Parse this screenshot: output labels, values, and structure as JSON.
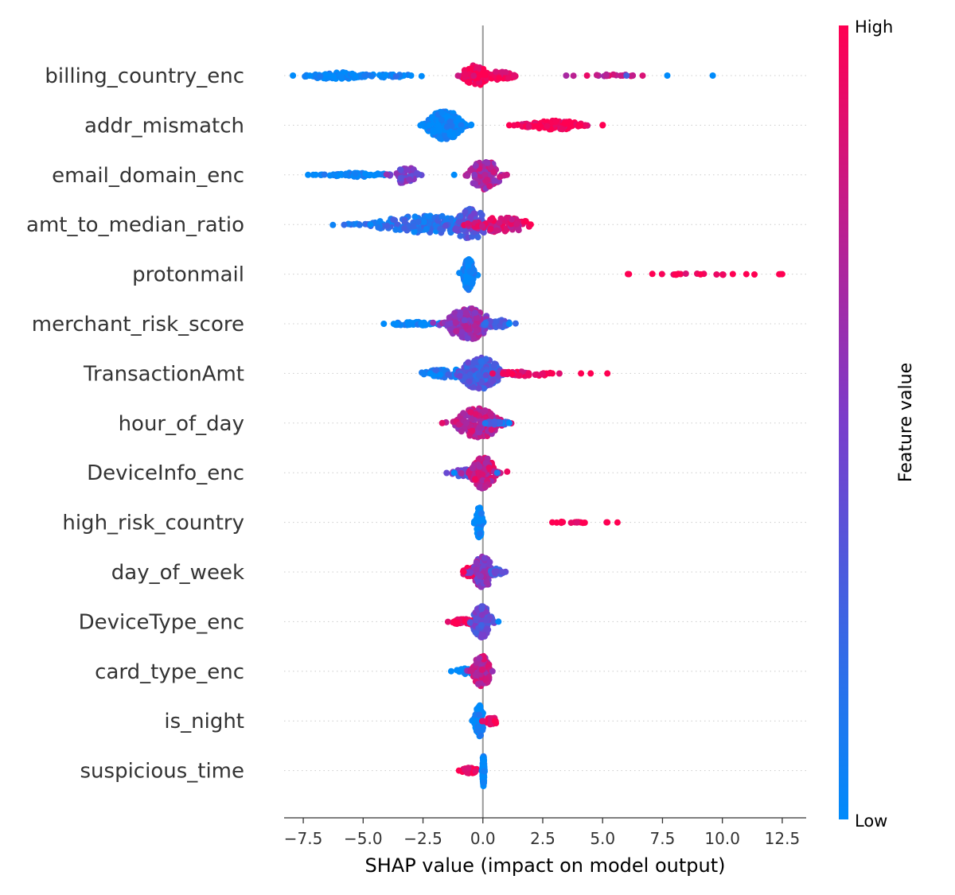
{
  "chart_data": {
    "type": "scatter",
    "subtype": "shap-beeswarm",
    "xlabel": "SHAP value (impact on model output)",
    "xlim": [
      -8.3,
      13.5
    ],
    "xticks": [
      -7.5,
      -5.0,
      -2.5,
      0.0,
      2.5,
      5.0,
      7.5,
      10.0,
      12.5
    ],
    "xtick_labels": [
      "−7.5",
      "−5.0",
      "−2.5",
      "0.0",
      "2.5",
      "5.0",
      "7.5",
      "10.0",
      "12.5"
    ],
    "colorbar": {
      "label": "Feature value",
      "high_label": "High",
      "low_label": "Low",
      "low_color": "#008bfb",
      "mid_color": "#7a3dcb",
      "high_color": "#ff0052"
    },
    "features": [
      {
        "name": "billing_country_enc",
        "clusters": [
          {
            "center": -6.0,
            "spread": 0.75,
            "count": 90,
            "width": 0.1,
            "value": 0.0
          },
          {
            "center": -4.0,
            "spread": 0.8,
            "count": 25,
            "width": 0.05,
            "value": 0.05
          },
          {
            "center": -0.5,
            "spread": 0.25,
            "count": 25,
            "width": 0.1,
            "value": 0.6
          },
          {
            "center": -0.3,
            "spread": 0.3,
            "count": 55,
            "width": 0.3,
            "value": 0.95
          },
          {
            "center": 0.5,
            "spread": 0.5,
            "count": 50,
            "width": 0.12,
            "value": 0.97
          },
          {
            "center": 5.0,
            "spread": 0.7,
            "count": 18,
            "width": 0.04,
            "value": 0.8
          }
        ],
        "points": [
          {
            "x": -3.0,
            "value": 0.0
          },
          {
            "x": 7.7,
            "value": 0.0
          },
          {
            "x": 9.6,
            "value": 0.0
          },
          {
            "x": 6.0,
            "value": 0.3
          }
        ]
      },
      {
        "name": "addr_mismatch",
        "clusters": [
          {
            "center": -1.6,
            "spread": 0.4,
            "count": 230,
            "width": 0.42,
            "value": 0.0
          },
          {
            "center": 2.9,
            "spread": 0.7,
            "count": 110,
            "width": 0.13,
            "value": 0.97
          }
        ],
        "points": [
          {
            "x": 1.1,
            "value": 1.0
          },
          {
            "x": 4.0,
            "value": 1.0
          },
          {
            "x": -0.5,
            "value": 0.0
          }
        ]
      },
      {
        "name": "email_domain_enc",
        "clusters": [
          {
            "center": -5.2,
            "spread": 0.75,
            "count": 60,
            "width": 0.06,
            "value": 0.0
          },
          {
            "center": -3.3,
            "spread": 0.3,
            "count": 45,
            "width": 0.25,
            "value": 0.5
          },
          {
            "center": 0.1,
            "spread": 0.35,
            "count": 120,
            "width": 0.42,
            "value": 0.7
          }
        ],
        "points": [
          {
            "x": -7.3,
            "value": 0.0
          },
          {
            "x": -1.2,
            "value": 0.0
          },
          {
            "x": 1.0,
            "value": 0.8
          }
        ]
      },
      {
        "name": "amt_to_median_ratio",
        "clusters": [
          {
            "center": -2.2,
            "spread": 1.3,
            "count": 200,
            "width": 0.25,
            "value": 0.15
          },
          {
            "center": -0.5,
            "spread": 0.4,
            "count": 80,
            "width": 0.45,
            "value": 0.35
          },
          {
            "center": 0.8,
            "spread": 0.7,
            "count": 90,
            "width": 0.22,
            "value": 0.85
          }
        ],
        "points": [
          {
            "x": -4.7,
            "value": 0.0
          },
          {
            "x": 2.0,
            "value": 1.0
          }
        ]
      },
      {
        "name": "protonmail",
        "clusters": [
          {
            "center": -0.6,
            "spread": 0.12,
            "count": 140,
            "width": 0.45,
            "value": 0.0
          },
          {
            "center": 9.0,
            "spread": 1.5,
            "count": 22,
            "width": 0.02,
            "value": 1.0
          }
        ],
        "points": [
          {
            "x": 6.1,
            "value": 1.0
          },
          {
            "x": 11.0,
            "value": 1.0
          },
          {
            "x": 12.5,
            "value": 1.0
          }
        ]
      },
      {
        "name": "merchant_risk_score",
        "clusters": [
          {
            "center": -2.8,
            "spread": 0.6,
            "count": 50,
            "width": 0.05,
            "value": 0.0
          },
          {
            "center": -0.6,
            "spread": 0.5,
            "count": 200,
            "width": 0.45,
            "value": 0.6
          },
          {
            "center": 0.6,
            "spread": 0.3,
            "count": 40,
            "width": 0.12,
            "value": 0.3
          }
        ],
        "points": [
          {
            "x": -3.6,
            "value": 0.0
          },
          {
            "x": 1.1,
            "value": 0.0
          }
        ]
      },
      {
        "name": "TransactionAmt",
        "clusters": [
          {
            "center": -1.5,
            "spread": 0.6,
            "count": 60,
            "width": 0.12,
            "value": 0.1
          },
          {
            "center": -0.1,
            "spread": 0.45,
            "count": 230,
            "width": 0.45,
            "value": 0.3
          },
          {
            "center": 1.8,
            "spread": 0.6,
            "count": 40,
            "width": 0.08,
            "value": 0.9
          }
        ],
        "points": [
          {
            "x": -2.2,
            "value": 0.0
          },
          {
            "x": 2.9,
            "value": 1.0
          },
          {
            "x": 4.1,
            "value": 1.0
          },
          {
            "x": 4.5,
            "value": 1.0
          },
          {
            "x": 5.2,
            "value": 1.0
          }
        ]
      },
      {
        "name": "hour_of_day",
        "clusters": [
          {
            "center": -0.2,
            "spread": 0.5,
            "count": 180,
            "width": 0.42,
            "value": 0.75
          },
          {
            "center": 0.6,
            "spread": 0.3,
            "count": 20,
            "width": 0.05,
            "value": 0.2
          }
        ],
        "points": [
          {
            "x": -1.7,
            "value": 0.9
          },
          {
            "x": 1.1,
            "value": 0.0
          }
        ]
      },
      {
        "name": "DeviceInfo_enc",
        "clusters": [
          {
            "center": -0.7,
            "spread": 0.35,
            "count": 40,
            "width": 0.12,
            "value": 0.4
          },
          {
            "center": 0.0,
            "spread": 0.28,
            "count": 150,
            "width": 0.45,
            "value": 0.8
          }
        ],
        "points": [
          {
            "x": -1.2,
            "value": 0.0
          },
          {
            "x": 0.6,
            "value": 0.1
          }
        ]
      },
      {
        "name": "high_risk_country",
        "clusters": [
          {
            "center": -0.15,
            "spread": 0.07,
            "count": 100,
            "width": 0.45,
            "value": 0.0
          },
          {
            "center": 3.8,
            "spread": 0.6,
            "count": 14,
            "width": 0.02,
            "value": 1.0
          }
        ],
        "points": [
          {
            "x": 2.9,
            "value": 1.0
          },
          {
            "x": 5.2,
            "value": 1.0
          }
        ]
      },
      {
        "name": "day_of_week",
        "clusters": [
          {
            "center": -0.4,
            "spread": 0.3,
            "count": 50,
            "width": 0.15,
            "value": 0.95
          },
          {
            "center": 0.0,
            "spread": 0.25,
            "count": 120,
            "width": 0.45,
            "value": 0.55
          },
          {
            "center": 0.5,
            "spread": 0.2,
            "count": 30,
            "width": 0.1,
            "value": 0.35
          }
        ],
        "points": [
          {
            "x": -0.8,
            "value": 1.0
          },
          {
            "x": 0.8,
            "value": 0.4
          }
        ]
      },
      {
        "name": "DeviceType_enc",
        "clusters": [
          {
            "center": -0.8,
            "spread": 0.3,
            "count": 40,
            "width": 0.08,
            "value": 0.97
          },
          {
            "center": -0.05,
            "spread": 0.22,
            "count": 140,
            "width": 0.45,
            "value": 0.4
          }
        ],
        "points": [
          {
            "x": -1.2,
            "value": 1.0
          },
          {
            "x": 0.65,
            "value": 0.0
          }
        ]
      },
      {
        "name": "card_type_enc",
        "clusters": [
          {
            "center": -0.7,
            "spread": 0.25,
            "count": 30,
            "width": 0.08,
            "value": 0.0
          },
          {
            "center": -0.05,
            "spread": 0.2,
            "count": 130,
            "width": 0.45,
            "value": 0.75
          }
        ],
        "points": [
          {
            "x": -1.0,
            "value": 0.0
          },
          {
            "x": 0.4,
            "value": 0.6
          }
        ]
      },
      {
        "name": "is_night",
        "clusters": [
          {
            "center": -0.15,
            "spread": 0.1,
            "count": 100,
            "width": 0.45,
            "value": 0.0
          },
          {
            "center": 0.35,
            "spread": 0.15,
            "count": 35,
            "width": 0.1,
            "value": 0.95
          }
        ],
        "points": [
          {
            "x": -0.4,
            "value": 0.0
          },
          {
            "x": 0.5,
            "value": 1.0
          }
        ]
      },
      {
        "name": "suspicious_time",
        "clusters": [
          {
            "center": -0.55,
            "spread": 0.2,
            "count": 40,
            "width": 0.08,
            "value": 1.0
          },
          {
            "center": 0.02,
            "spread": 0.02,
            "count": 110,
            "width": 0.45,
            "value": 0.0
          }
        ],
        "points": [
          {
            "x": -1.0,
            "value": 1.0
          }
        ]
      }
    ]
  }
}
